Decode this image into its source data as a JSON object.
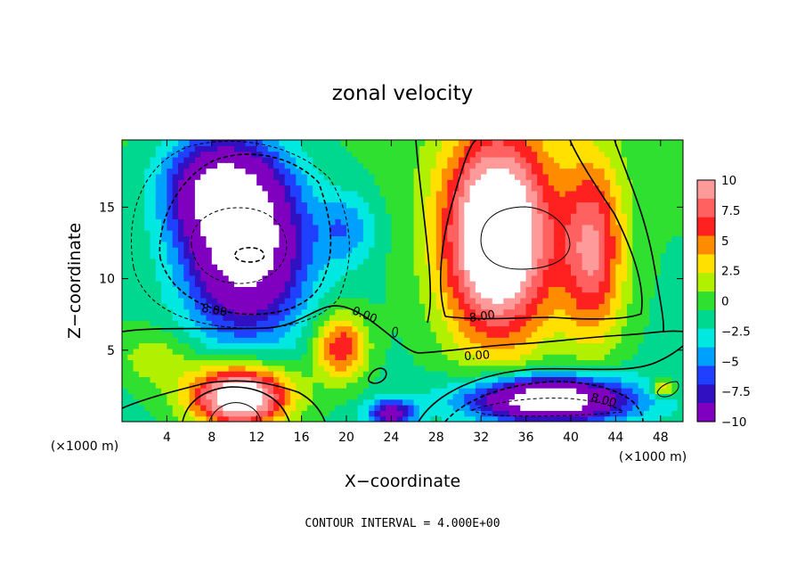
{
  "chart_data": {
    "type": "heatmap",
    "title": "zonal velocity",
    "xlabel": "X−coordinate",
    "ylabel": "Z−coordinate",
    "x_unit": "(×1000 m)",
    "y_unit": "(×1000 m)",
    "x_ticks": [
      4,
      8,
      12,
      16,
      20,
      24,
      28,
      32,
      36,
      40,
      44,
      48
    ],
    "y_ticks": [
      5,
      10,
      15
    ],
    "xlim": [
      0,
      50
    ],
    "ylim": [
      0,
      19.7
    ],
    "colorbar": {
      "labels": [
        "10",
        "7.5",
        "5",
        "2.5",
        "0",
        "−2.5",
        "−5",
        "−7.5",
        "−10"
      ],
      "range": [
        -10,
        10
      ],
      "colors": [
        "#ff9a9a",
        "#ff6060",
        "#ff2020",
        "#ff8c00",
        "#ffe000",
        "#b0f000",
        "#30e030",
        "#00d890",
        "#00e8e0",
        "#00a0ff",
        "#2040ff",
        "#3010c0",
        "#8000c0"
      ]
    },
    "contour_labels": [
      "8.00",
      "0.00",
      "8.00",
      "0.00",
      "8.00"
    ],
    "contour_interval_note": "CONTOUR INTERVAL = 4.000E+00",
    "blobs": [
      {
        "x": 11,
        "z": 12.5,
        "rx": 5.2,
        "rz": 6.0,
        "v": -15
      },
      {
        "x": 8,
        "z": 16.5,
        "rx": 4.5,
        "rz": 3.5,
        "v": -8
      },
      {
        "x": 33.5,
        "z": 13,
        "rx": 5.0,
        "rz": 7.5,
        "v": 16
      },
      {
        "x": 42,
        "z": 12,
        "rx": 2.8,
        "rz": 6.5,
        "v": 9
      },
      {
        "x": 38,
        "z": 1.6,
        "rx": 7.0,
        "rz": 1.6,
        "v": -16
      },
      {
        "x": 24,
        "z": 0.6,
        "rx": 2.0,
        "rz": 1.0,
        "v": -9
      },
      {
        "x": 10.5,
        "z": 1.8,
        "rx": 4.5,
        "rz": 2.2,
        "v": 15
      },
      {
        "x": 19.5,
        "z": 5.2,
        "rx": 2.3,
        "rz": 2.3,
        "v": 8
      },
      {
        "x": 48.2,
        "z": 2.4,
        "rx": 1.0,
        "rz": 0.6,
        "v": 6
      },
      {
        "x": 3,
        "z": 4.5,
        "rx": 3.5,
        "rz": 2.0,
        "v": 3
      },
      {
        "x": 20,
        "z": 13.5,
        "rx": 2.5,
        "rz": 2.5,
        "v": -4
      }
    ]
  }
}
